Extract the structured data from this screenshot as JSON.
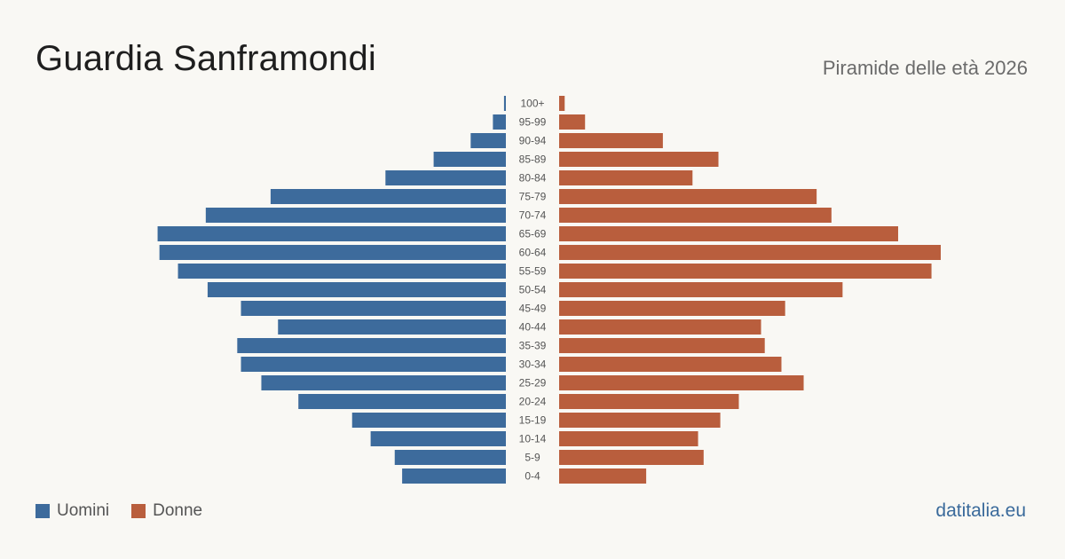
{
  "header": {
    "title": "Guardia Sanframondi",
    "subtitle": "Piramide delle età 2026"
  },
  "legend": {
    "men_label": "Uomini",
    "women_label": "Donne"
  },
  "footer": {
    "brand": "datitalia.eu"
  },
  "colors": {
    "men": "#3d6b9c",
    "women": "#b95e3d",
    "background": "#f9f8f4",
    "age_label": "#555555"
  },
  "chart_data": {
    "type": "bar",
    "orientation": "horizontal-population-pyramid",
    "categories": [
      "100+",
      "95-99",
      "90-94",
      "85-89",
      "80-84",
      "75-79",
      "70-74",
      "65-69",
      "60-64",
      "55-59",
      "50-54",
      "45-49",
      "40-44",
      "35-39",
      "30-34",
      "25-29",
      "20-24",
      "15-19",
      "10-14",
      "5-9",
      "0-4"
    ],
    "series": [
      {
        "name": "Uomini",
        "values": [
          1,
          7,
          19,
          39,
          65,
          127,
          162,
          188,
          187,
          177,
          161,
          143,
          123,
          145,
          143,
          132,
          112,
          83,
          73,
          60,
          56
        ]
      },
      {
        "name": "Donne",
        "values": [
          3,
          14,
          56,
          86,
          72,
          139,
          147,
          183,
          206,
          201,
          153,
          122,
          109,
          111,
          120,
          132,
          97,
          87,
          75,
          78,
          47
        ]
      }
    ],
    "xlim": [
      0,
      206
    ],
    "legend_position": "bottom-left",
    "grid": false
  }
}
